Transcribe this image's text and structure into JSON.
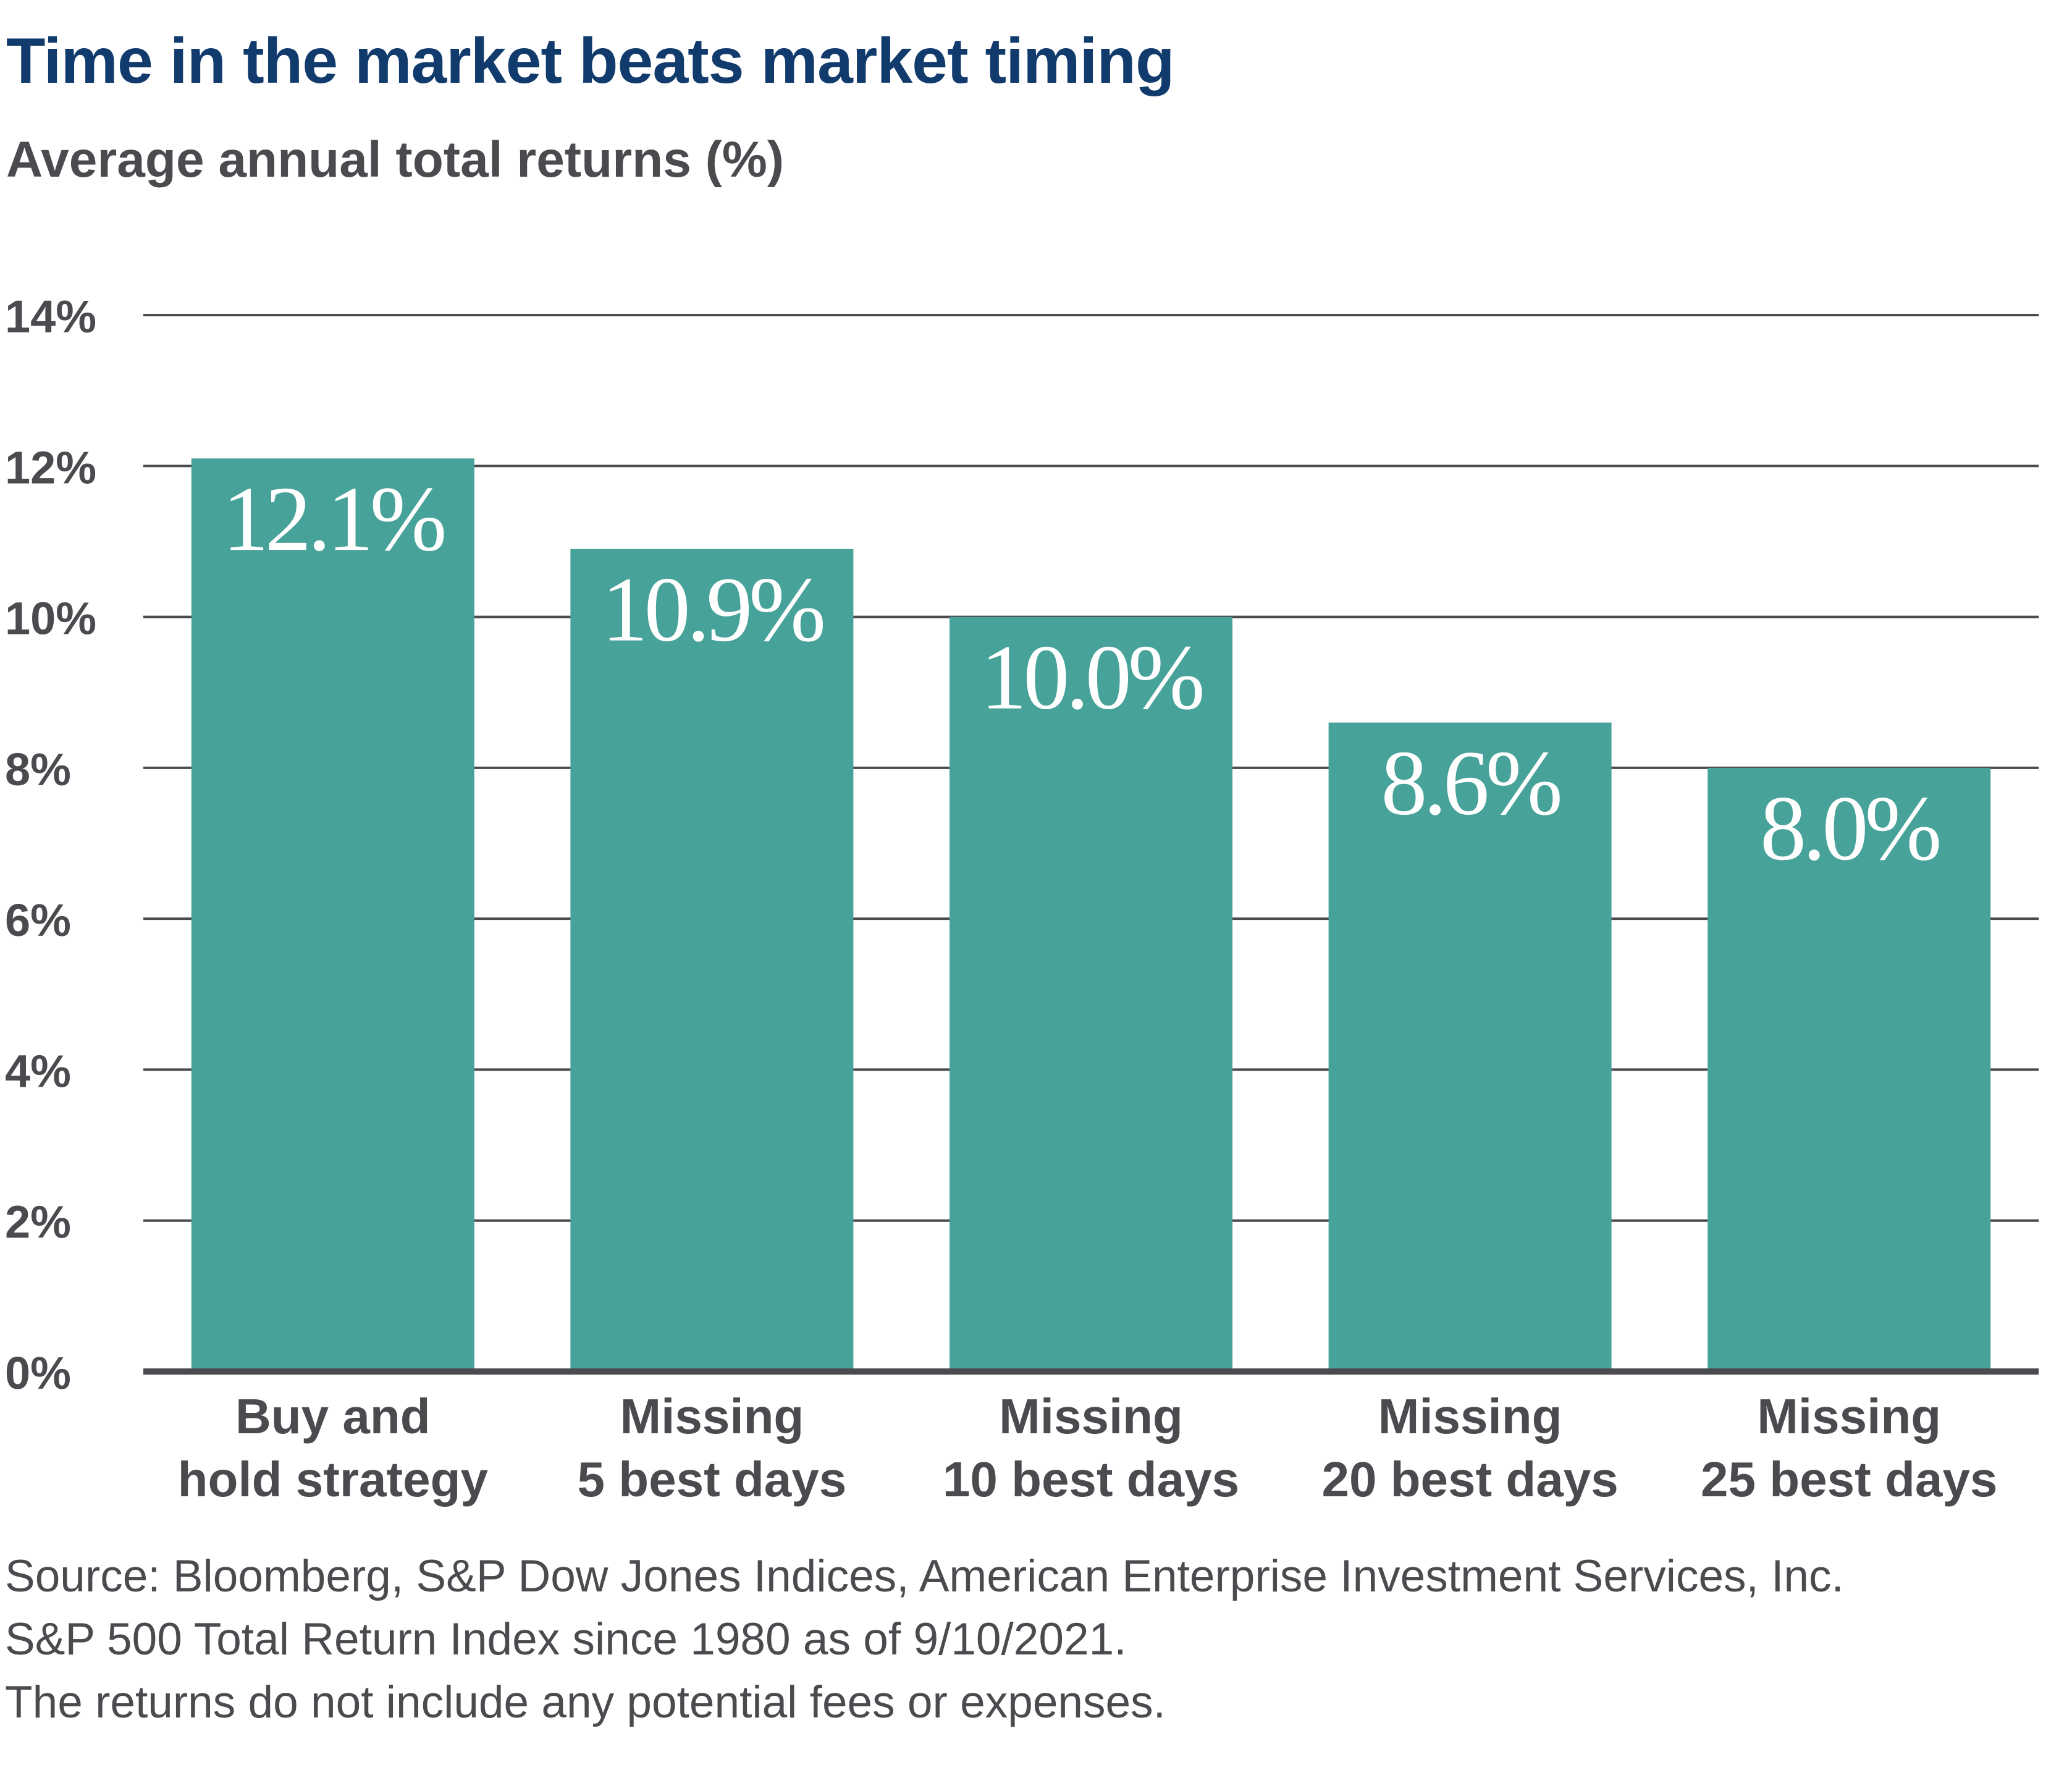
{
  "header": {
    "title": "Time in the market beats market timing",
    "subtitle": "Average annual total returns (%)"
  },
  "colors": {
    "bar": "#47a29a",
    "title": "#123b6d",
    "text": "#4a4a4f",
    "grid": "#4a4a4f",
    "label_on_bar": "#ffffff"
  },
  "chart_data": {
    "type": "bar",
    "title": "Time in the market beats market timing",
    "subtitle": "Average annual total returns (%)",
    "categories": [
      [
        "Buy and",
        "hold strategy"
      ],
      [
        "Missing",
        "5 best days"
      ],
      [
        "Missing",
        "10 best days"
      ],
      [
        "Missing",
        "20 best days"
      ],
      [
        "Missing",
        "25 best days"
      ]
    ],
    "values": [
      12.1,
      10.9,
      10.0,
      8.6,
      8.0
    ],
    "value_labels": [
      "12.1%",
      "10.9%",
      "10.0%",
      "8.6%",
      "8.0%"
    ],
    "y_ticks": [
      0,
      2,
      4,
      6,
      8,
      10,
      12,
      14
    ],
    "y_tick_labels": [
      "0%",
      "2%",
      "4%",
      "6%",
      "8%",
      "10%",
      "12%",
      "14%"
    ],
    "ylim": [
      0,
      14
    ],
    "xlabel": "",
    "ylabel": "",
    "grid": true
  },
  "footnotes": [
    "Source: Bloomberg, S&P Dow Jones Indices, American Enterprise Investment Services, Inc.",
    "S&P 500 Total Return Index since 1980 as of 9/10/2021.",
    "The returns do not include any potential fees or expenses."
  ]
}
